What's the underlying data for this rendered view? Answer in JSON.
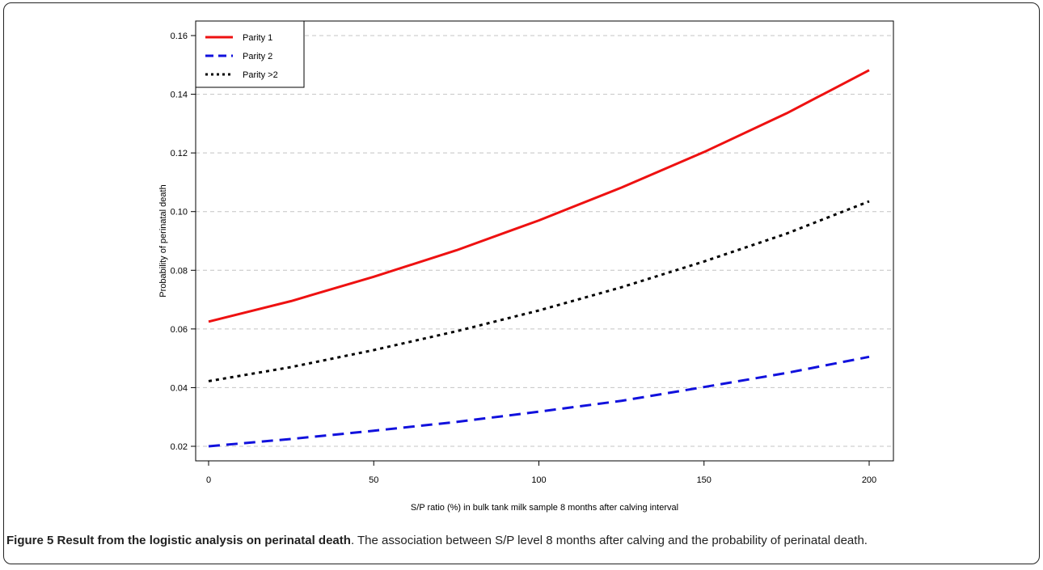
{
  "caption": {
    "title": "Figure 5 Result from the logistic analysis on perinatal death",
    "separator": ".",
    "text": " The association between S/P level 8 months after calving and the probability of perinatal death."
  },
  "chart_data": {
    "type": "line",
    "xlabel": "S/P ratio (%) in bulk tank milk sample 8 months after calving interval",
    "ylabel": "Probability of perinatal death",
    "xlim": [
      0,
      200
    ],
    "ylim": [
      0.02,
      0.16
    ],
    "xticks": [
      0,
      50,
      100,
      150,
      200
    ],
    "xtick_labels": [
      "0",
      "50",
      "100",
      "150",
      "200"
    ],
    "yticks": [
      0.02,
      0.04,
      0.06,
      0.08,
      0.1,
      0.12,
      0.14,
      0.16
    ],
    "ytick_labels": [
      "0.02",
      "0.04",
      "0.06",
      "0.08",
      "0.10",
      "0.12",
      "0.14",
      "0.16"
    ],
    "grid": "horizontal dashed",
    "legend_position": "top-left",
    "x": [
      0,
      25,
      50,
      75,
      100,
      125,
      150,
      175,
      200
    ],
    "series": [
      {
        "name": "Parity 1",
        "color": "#ee1111",
        "dash": "solid",
        "values": [
          0.0625,
          0.0695,
          0.0778,
          0.0868,
          0.097,
          0.1082,
          0.1203,
          0.1335,
          0.1482
        ]
      },
      {
        "name": "Parity 2",
        "color": "#1111dd",
        "dash": "dashed",
        "values": [
          0.02,
          0.0225,
          0.0253,
          0.0283,
          0.0318,
          0.0355,
          0.0402,
          0.045,
          0.0505
        ]
      },
      {
        "name": "Parity >2",
        "color": "#000000",
        "dash": "dotted",
        "values": [
          0.0422,
          0.047,
          0.0528,
          0.0592,
          0.0663,
          0.0742,
          0.083,
          0.0925,
          0.1035
        ]
      }
    ]
  }
}
